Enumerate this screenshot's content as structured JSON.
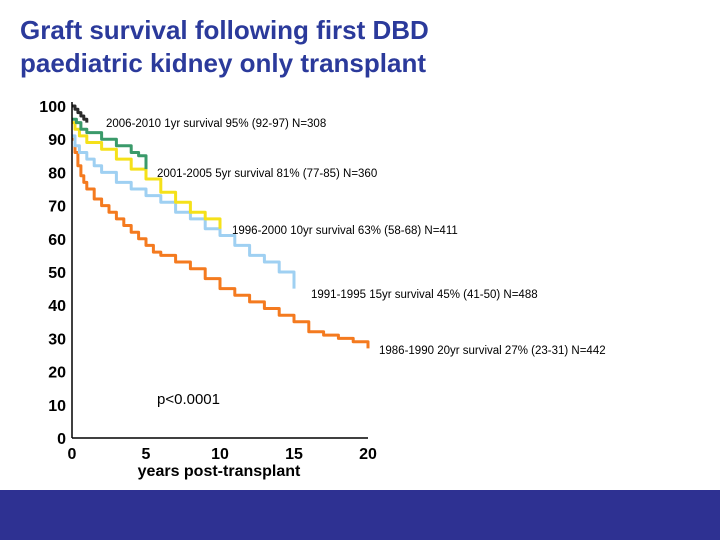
{
  "title": {
    "line1": "Graft survival following first DBD",
    "line2": "paediatric kidney only transplant"
  },
  "chart_data": {
    "type": "line",
    "step": true,
    "xlabel": "years post-transplant",
    "ylabel": "",
    "xlim": [
      0,
      20
    ],
    "ylim": [
      0,
      100
    ],
    "xticks": [
      0,
      5,
      10,
      15,
      20
    ],
    "yticks": [
      0,
      10,
      20,
      30,
      40,
      50,
      60,
      70,
      80,
      90,
      100
    ],
    "grid": false,
    "annotation": "p<0.0001",
    "series": [
      {
        "name": "1986-1990",
        "label": "1986-1990 20yr survival 27% (23-31) N=442",
        "color": "#f47a1f",
        "x": [
          0,
          0.2,
          0.4,
          0.6,
          0.8,
          1,
          1.5,
          2,
          2.5,
          3,
          3.5,
          4,
          4.5,
          5,
          5.5,
          6,
          7,
          8,
          9,
          10,
          11,
          12,
          13,
          14,
          15,
          16,
          17,
          18,
          19,
          20
        ],
        "y": [
          90,
          86,
          82,
          79,
          77,
          75,
          72,
          70,
          68,
          66,
          64,
          62,
          60,
          58,
          56,
          55,
          53,
          51,
          48,
          45,
          43,
          41,
          39,
          37,
          35,
          32,
          31,
          30,
          29,
          27
        ]
      },
      {
        "name": "1991-1995",
        "label": "1991-1995 15yr survival 45% (41-50) N=488",
        "color": "#9fd0f2",
        "x": [
          0,
          0.2,
          0.5,
          1,
          1.5,
          2,
          3,
          4,
          5,
          6,
          7,
          8,
          9,
          10,
          11,
          12,
          13,
          14,
          15
        ],
        "y": [
          91,
          88,
          86,
          84,
          82,
          80,
          77,
          75,
          73,
          71,
          68,
          66,
          63,
          61,
          58,
          55,
          53,
          50,
          45
        ]
      },
      {
        "name": "1996-2000",
        "label": "1996-2000 10yr survival 63% (58-68) N=411",
        "color": "#f5e11a",
        "x": [
          0,
          0.2,
          0.5,
          1,
          2,
          3,
          4,
          5,
          6,
          7,
          8,
          9,
          10
        ],
        "y": [
          95,
          93,
          91,
          89,
          87,
          84,
          81,
          78,
          74,
          71,
          68,
          66,
          63
        ]
      },
      {
        "name": "2001-2005",
        "label": "2001-2005 5yr survival 81% (77-85) N=360",
        "color": "#3a9a6a",
        "x": [
          0,
          0.3,
          0.6,
          1,
          2,
          3,
          4,
          4.5,
          5
        ],
        "y": [
          96,
          95,
          93,
          92,
          90,
          88,
          86,
          85,
          81
        ]
      },
      {
        "name": "2006-2010",
        "label": "2006-2010 1yr survival 95% (92-97) N=308",
        "color": "#2b2b2b",
        "x": [
          0,
          0.2,
          0.4,
          0.6,
          0.8,
          1
        ],
        "y": [
          100,
          99,
          98,
          97,
          96,
          95
        ]
      }
    ]
  }
}
